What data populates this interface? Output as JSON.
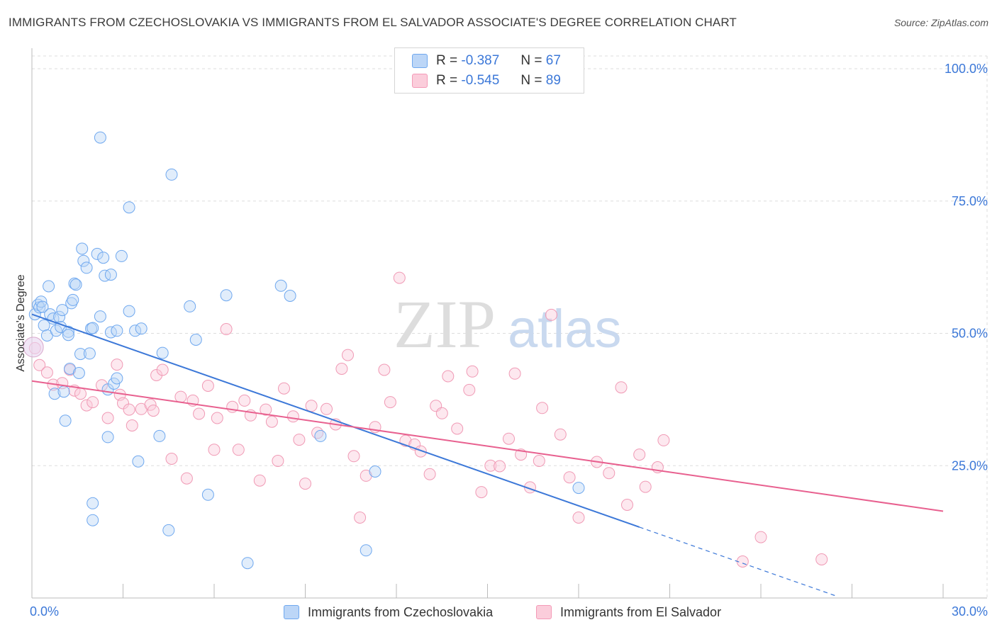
{
  "header": {
    "title": "IMMIGRANTS FROM CZECHOSLOVAKIA VS IMMIGRANTS FROM EL SALVADOR ASSOCIATE'S DEGREE CORRELATION CHART",
    "source": "Source: ZipAtlas.com"
  },
  "watermark": {
    "zip": "ZIP",
    "atlas": "atlas"
  },
  "legend_top": [
    {
      "r_label": "R =",
      "r_value": "-0.387",
      "n_label": "N =",
      "n_value": "67",
      "color": "#6fa8ef"
    },
    {
      "r_label": "R =",
      "r_value": "-0.545",
      "n_label": "N =",
      "n_value": "89",
      "color": "#f49ab7"
    }
  ],
  "legend_bottom": [
    {
      "label": "Immigrants from Czechoslovakia",
      "color": "#6fa8ef"
    },
    {
      "label": "Immigrants from El Salvador",
      "color": "#f49ab7"
    }
  ],
  "chart_data": {
    "type": "scatter",
    "title": "IMMIGRANTS FROM CZECHOSLOVAKIA VS IMMIGRANTS FROM EL SALVADOR ASSOCIATE'S DEGREE CORRELATION CHART",
    "xlabel": "",
    "ylabel": "Associate's Degree",
    "xlim": [
      0,
      30
    ],
    "ylim": [
      0,
      100
    ],
    "x_tick_labels": [
      "0.0%",
      "30.0%"
    ],
    "y_tick_labels": [
      "25.0%",
      "50.0%",
      "75.0%",
      "100.0%"
    ],
    "y_ticks": [
      25,
      50,
      75,
      100
    ],
    "grid": true,
    "legend_position": "bottom-center",
    "series": [
      {
        "name": "Immigrants from Czechoslovakia",
        "color": "#6fa8ef",
        "r": -0.387,
        "n": 67,
        "trend": {
          "x0": 0,
          "y0": 53.6,
          "x1": 20.0,
          "y1": 13.4,
          "dashed_to_x": 26.5
        },
        "points": [
          [
            0.1,
            53.6
          ],
          [
            0.2,
            55.4
          ],
          [
            0.25,
            54.9
          ],
          [
            0.3,
            56.0
          ],
          [
            0.35,
            55.0
          ],
          [
            0.4,
            51.5
          ],
          [
            0.5,
            49.6
          ],
          [
            0.55,
            58.9
          ],
          [
            0.6,
            53.6
          ],
          [
            0.7,
            52.8
          ],
          [
            0.75,
            38.6
          ],
          [
            0.8,
            50.5
          ],
          [
            0.9,
            53.1
          ],
          [
            0.95,
            51.2
          ],
          [
            1.0,
            54.4
          ],
          [
            1.05,
            39.0
          ],
          [
            1.1,
            33.5
          ],
          [
            1.2,
            50.3
          ],
          [
            1.2,
            49.7
          ],
          [
            1.25,
            43.3
          ],
          [
            1.3,
            55.7
          ],
          [
            1.35,
            56.3
          ],
          [
            1.4,
            59.4
          ],
          [
            1.45,
            59.2
          ],
          [
            1.55,
            42.5
          ],
          [
            1.6,
            46.1
          ],
          [
            1.65,
            66.0
          ],
          [
            1.7,
            63.7
          ],
          [
            1.8,
            62.4
          ],
          [
            1.9,
            46.2
          ],
          [
            1.95,
            50.9
          ],
          [
            2.0,
            51.0
          ],
          [
            2.0,
            17.9
          ],
          [
            2.15,
            65.0
          ],
          [
            2.25,
            53.2
          ],
          [
            2.25,
            87.0
          ],
          [
            2.35,
            64.3
          ],
          [
            2.4,
            60.9
          ],
          [
            2.5,
            30.4
          ],
          [
            2.5,
            39.4
          ],
          [
            2.6,
            61.1
          ],
          [
            2.6,
            50.2
          ],
          [
            2.7,
            40.5
          ],
          [
            2.8,
            41.5
          ],
          [
            2.95,
            64.6
          ],
          [
            2.8,
            50.5
          ],
          [
            3.2,
            73.8
          ],
          [
            3.2,
            54.2
          ],
          [
            3.4,
            50.5
          ],
          [
            3.5,
            25.8
          ],
          [
            3.6,
            50.9
          ],
          [
            4.2,
            30.6
          ],
          [
            4.3,
            46.3
          ],
          [
            4.5,
            12.8
          ],
          [
            4.6,
            80.0
          ],
          [
            5.2,
            55.1
          ],
          [
            5.4,
            48.8
          ],
          [
            5.8,
            19.5
          ],
          [
            6.4,
            57.2
          ],
          [
            7.1,
            6.6
          ],
          [
            8.2,
            59.0
          ],
          [
            8.5,
            57.1
          ],
          [
            9.5,
            30.6
          ],
          [
            11.3,
            23.9
          ],
          [
            11.0,
            9.0
          ],
          [
            18.0,
            20.8
          ],
          [
            2.0,
            14.7
          ]
        ]
      },
      {
        "name": "Immigrants from El Salvador",
        "color": "#f49ab7",
        "r": -0.545,
        "n": 89,
        "trend": {
          "x0": 0,
          "y0": 41.0,
          "x1": 30,
          "y1": 16.4
        },
        "points": [
          [
            0.1,
            47.2
          ],
          [
            0.25,
            44.0
          ],
          [
            0.5,
            42.6
          ],
          [
            0.7,
            40.3
          ],
          [
            1.0,
            40.6
          ],
          [
            1.25,
            43.1
          ],
          [
            1.4,
            39.2
          ],
          [
            1.6,
            38.6
          ],
          [
            1.8,
            36.4
          ],
          [
            2.0,
            37.0
          ],
          [
            2.3,
            40.2
          ],
          [
            2.5,
            34.0
          ],
          [
            2.8,
            44.1
          ],
          [
            2.9,
            38.4
          ],
          [
            3.0,
            36.8
          ],
          [
            3.2,
            35.6
          ],
          [
            3.3,
            32.6
          ],
          [
            3.6,
            35.7
          ],
          [
            3.9,
            36.5
          ],
          [
            4.0,
            35.4
          ],
          [
            4.1,
            42.1
          ],
          [
            4.3,
            43.1
          ],
          [
            4.6,
            26.3
          ],
          [
            4.9,
            38.0
          ],
          [
            5.1,
            22.6
          ],
          [
            5.3,
            37.3
          ],
          [
            5.5,
            34.8
          ],
          [
            5.8,
            40.1
          ],
          [
            6.0,
            28.0
          ],
          [
            6.1,
            34.0
          ],
          [
            6.4,
            50.8
          ],
          [
            6.6,
            36.1
          ],
          [
            6.8,
            28.0
          ],
          [
            7.0,
            37.3
          ],
          [
            7.2,
            34.5
          ],
          [
            7.5,
            22.2
          ],
          [
            7.7,
            35.6
          ],
          [
            7.9,
            33.3
          ],
          [
            8.1,
            25.9
          ],
          [
            8.3,
            39.6
          ],
          [
            8.6,
            34.3
          ],
          [
            8.8,
            29.9
          ],
          [
            9.0,
            21.6
          ],
          [
            9.2,
            36.3
          ],
          [
            9.4,
            31.2
          ],
          [
            9.7,
            35.7
          ],
          [
            10.0,
            32.8
          ],
          [
            10.2,
            43.3
          ],
          [
            10.4,
            45.9
          ],
          [
            10.6,
            26.8
          ],
          [
            10.8,
            15.2
          ],
          [
            11.0,
            23.1
          ],
          [
            11.3,
            32.3
          ],
          [
            11.6,
            43.1
          ],
          [
            11.8,
            37.0
          ],
          [
            12.1,
            60.5
          ],
          [
            12.3,
            29.7
          ],
          [
            12.6,
            29.0
          ],
          [
            12.8,
            27.7
          ],
          [
            13.1,
            23.4
          ],
          [
            13.3,
            36.3
          ],
          [
            13.5,
            34.9
          ],
          [
            13.7,
            41.9
          ],
          [
            14.0,
            32.0
          ],
          [
            14.4,
            39.3
          ],
          [
            14.5,
            42.8
          ],
          [
            14.8,
            20.0
          ],
          [
            15.1,
            25.0
          ],
          [
            15.4,
            24.9
          ],
          [
            15.7,
            30.1
          ],
          [
            15.9,
            42.4
          ],
          [
            16.1,
            27.1
          ],
          [
            16.4,
            20.9
          ],
          [
            16.7,
            25.9
          ],
          [
            16.8,
            35.9
          ],
          [
            17.1,
            53.5
          ],
          [
            17.4,
            30.9
          ],
          [
            17.7,
            22.8
          ],
          [
            18.0,
            15.2
          ],
          [
            18.6,
            25.7
          ],
          [
            19.0,
            23.6
          ],
          [
            19.4,
            39.8
          ],
          [
            19.6,
            17.6
          ],
          [
            20.0,
            27.1
          ],
          [
            20.2,
            21.0
          ],
          [
            20.6,
            24.7
          ],
          [
            20.8,
            29.8
          ],
          [
            23.4,
            6.9
          ],
          [
            24.0,
            11.5
          ],
          [
            26.0,
            7.3
          ]
        ]
      }
    ]
  }
}
